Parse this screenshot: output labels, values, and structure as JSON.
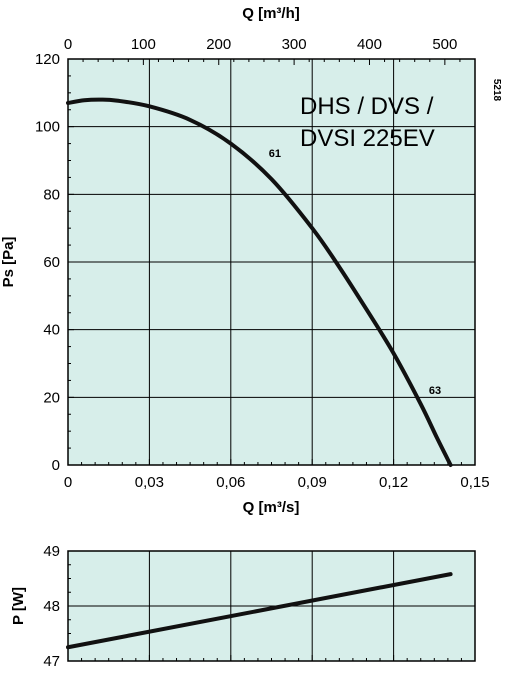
{
  "chart_data": [
    {
      "type": "line",
      "title": "DHS / DVS / DVSI 225EV",
      "title_lines": [
        "DHS / DVS /",
        "DVSI 225EV"
      ],
      "xlabel": "Q [m³/s]",
      "x2label": "Q [m³/h]",
      "ylabel": "Ps [Pa]",
      "xlim": [
        0,
        0.15
      ],
      "x2lim": [
        0,
        540
      ],
      "ylim": [
        0,
        120
      ],
      "xticks": [
        "0",
        "0,03",
        "0,06",
        "0,09",
        "0,12",
        "0,15"
      ],
      "x2ticks": [
        "0",
        "100",
        "200",
        "300",
        "400",
        "500"
      ],
      "yticks": [
        "0",
        "20",
        "40",
        "60",
        "80",
        "100",
        "120"
      ],
      "grid": true,
      "background_color": "#d7eeea",
      "series": [
        {
          "x": [
            0,
            0.006,
            0.012,
            0.018,
            0.03,
            0.045,
            0.06,
            0.075,
            0.09,
            0.1,
            0.11,
            0.12,
            0.13,
            0.136,
            0.141
          ],
          "y": [
            107,
            107.8,
            108,
            107.7,
            106,
            102,
            95,
            84.5,
            70,
            58.5,
            46,
            33,
            18,
            8,
            0
          ]
        }
      ],
      "annotations": [
        {
          "text": "61",
          "x": 0.074,
          "y": 91
        },
        {
          "text": "63",
          "x": 0.133,
          "y": 21
        }
      ],
      "side_code": "5218"
    },
    {
      "type": "line",
      "ylabel": "P [W]",
      "xlim": [
        0,
        0.15
      ],
      "ylim": [
        47,
        49
      ],
      "yticks": [
        "47",
        "48",
        "49"
      ],
      "grid": true,
      "background_color": "#d7eeea",
      "series": [
        {
          "x": [
            0,
            0.141
          ],
          "y": [
            47.25,
            48.58
          ]
        }
      ]
    }
  ]
}
